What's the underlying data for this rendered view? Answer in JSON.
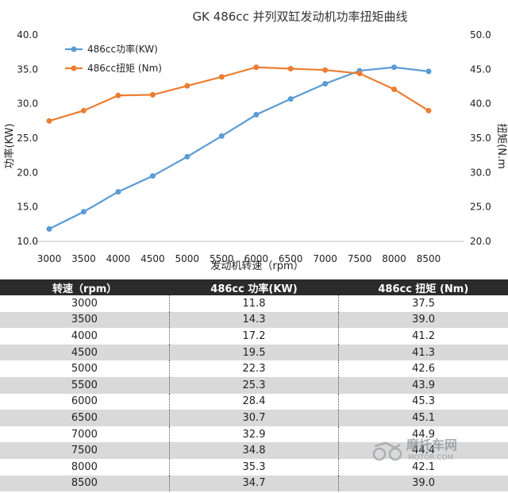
{
  "chart_data": {
    "type": "line",
    "title": "GK 486cc 并列双缸发动机功率扭矩曲线",
    "xlabel": "发动机转速（rpm）",
    "ylabel_left": "功率(KW)",
    "ylabel_right": "扭矩(N.m",
    "categories": [
      "3000",
      "3500",
      "4000",
      "4500",
      "5000",
      "5500",
      "6000",
      "6500",
      "7000",
      "7500",
      "8000",
      "8500"
    ],
    "ylim_left": [
      10,
      40
    ],
    "ylim_right": [
      20,
      50
    ],
    "yticks_left": [
      "10.0",
      "15.0",
      "20.0",
      "25.0",
      "30.0",
      "35.0",
      "40.0"
    ],
    "yticks_right": [
      "20.0",
      "25.0",
      "30.0",
      "35.0",
      "40.0",
      "45.0",
      "50.0"
    ],
    "grid": false,
    "legend_position": "top-left",
    "series": [
      {
        "name": "486cc功率(KW)",
        "axis": "left",
        "color": "#5b9bd5",
        "values": [
          11.8,
          14.3,
          17.2,
          19.5,
          22.3,
          25.3,
          28.4,
          30.7,
          32.9,
          34.8,
          35.3,
          34.7
        ]
      },
      {
        "name": "486cc扭矩 (Nm)",
        "axis": "right",
        "color": "#ed7d31",
        "values": [
          37.5,
          39.0,
          41.2,
          41.3,
          42.6,
          43.9,
          45.3,
          45.1,
          44.9,
          44.4,
          42.1,
          39.0
        ]
      }
    ]
  },
  "table": {
    "headers": [
      "转速（rpm）",
      "486cc 功率(KW)",
      "486cc 扭矩 (Nm)"
    ],
    "rows": [
      [
        "3000",
        "11.8",
        "37.5"
      ],
      [
        "3500",
        "14.3",
        "39.0"
      ],
      [
        "4000",
        "17.2",
        "41.2"
      ],
      [
        "4500",
        "19.5",
        "41.3"
      ],
      [
        "5000",
        "22.3",
        "42.6"
      ],
      [
        "5500",
        "25.3",
        "43.9"
      ],
      [
        "6000",
        "28.4",
        "45.3"
      ],
      [
        "6500",
        "30.7",
        "45.1"
      ],
      [
        "7000",
        "32.9",
        "44.9"
      ],
      [
        "7500",
        "34.8",
        "44.4"
      ],
      [
        "8000",
        "35.3",
        "42.1"
      ],
      [
        "8500",
        "34.7",
        "39.0"
      ]
    ]
  },
  "watermark": {
    "brand": "摩托车网",
    "url": "MOTOR.COM",
    "icon": "motorcycle-logo-icon"
  }
}
